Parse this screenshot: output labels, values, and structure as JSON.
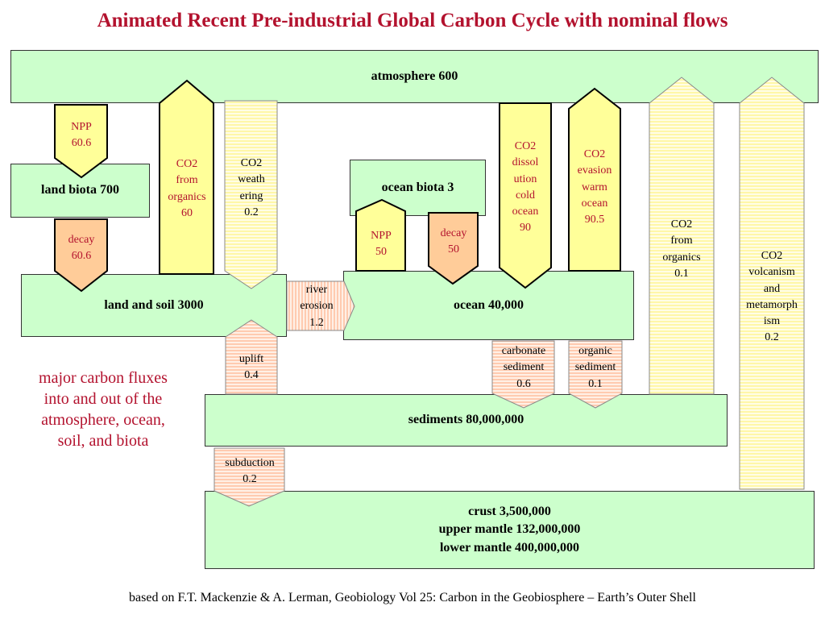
{
  "title": "Animated Recent Pre-industrial Global Carbon Cycle with nominal flows",
  "boxes": {
    "atmosphere": "atmosphere 600",
    "land_biota": "land biota 700",
    "ocean_biota": "ocean biota 3",
    "land_soil": "land and soil 3000",
    "ocean": "ocean 40,000",
    "sediments": "sediments 80,000,000",
    "crust": [
      "crust 3,500,000",
      "upper mantle 132,000,000",
      "lower mantle 400,000,000"
    ]
  },
  "flows": {
    "npp_land": [
      "NPP",
      "60.6"
    ],
    "co2_from_organics_land": [
      "CO2",
      "from",
      "organics",
      "60"
    ],
    "co2_weathering": [
      "CO2",
      "weath",
      "ering",
      "0.2"
    ],
    "decay_land": [
      "decay",
      "60.6"
    ],
    "npp_ocean": [
      "NPP",
      "50"
    ],
    "decay_ocean": [
      "decay",
      "50"
    ],
    "co2_dissolution": [
      "CO2",
      "dissol",
      "ution",
      "cold",
      "ocean",
      "90"
    ],
    "co2_evasion": [
      "CO2",
      "evasion",
      "warm",
      "ocean",
      "90.5"
    ],
    "co2_from_organics_sed": [
      "CO2",
      "from",
      "organics",
      "0.1"
    ],
    "co2_volcanism": [
      "CO2",
      "volcanism",
      "and",
      "metamorph",
      "ism",
      "0.2"
    ],
    "river_erosion": [
      "river",
      "erosion",
      "1.2"
    ],
    "uplift": [
      "uplift",
      "0.4"
    ],
    "carbonate_sediment": [
      "carbonate",
      "sediment",
      "0.6"
    ],
    "organic_sediment": [
      "organic",
      "sediment",
      "0.1"
    ],
    "subduction": [
      "subduction",
      "0.2"
    ]
  },
  "note": [
    "major carbon fluxes",
    "into and out of the",
    "atmosphere, ocean,",
    "soil, and biota"
  ],
  "credit": "based on F.T. Mackenzie & A. Lerman, Geobiology Vol 25: Carbon in the Geobiosphere – Earth’s Outer Shell",
  "colors": {
    "reservoir_fill": "#ccffcc",
    "arrow_yellow": "#ffff99",
    "arrow_peach": "#ffcc99",
    "stripe_yellow": "#fff7b0",
    "stripe_peach": "#ffcfb0",
    "accent_red": "#b3122e"
  }
}
